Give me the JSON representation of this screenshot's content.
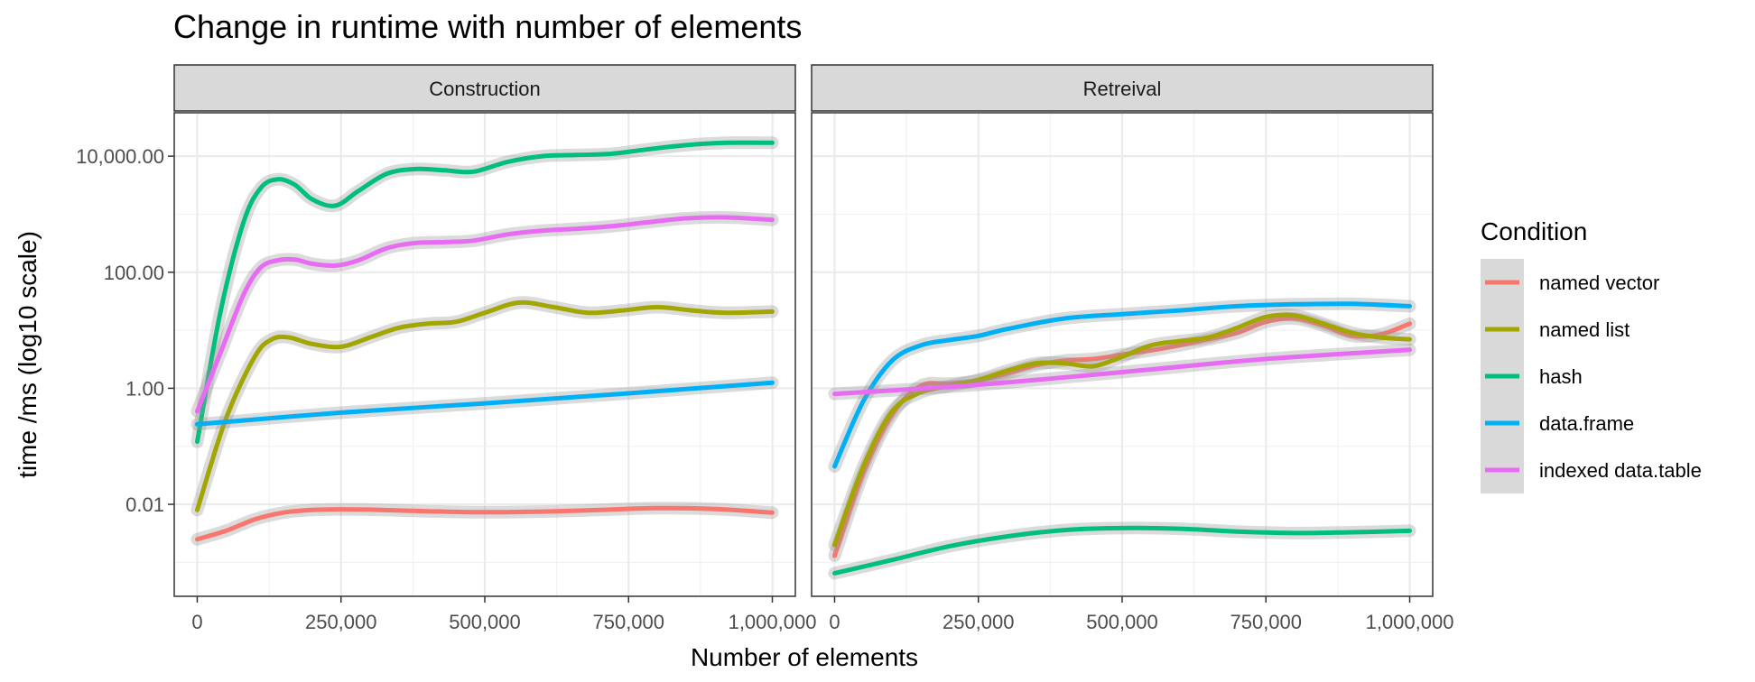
{
  "chart_data": {
    "type": "line",
    "title": "Change in runtime with number of elements",
    "xlabel": "Number of elements",
    "ylabel": "time /ms (log10 scale)",
    "y_scale": "log10",
    "xlim": [
      -40000,
      1040000
    ],
    "ylim": [
      0.00026,
      56000
    ],
    "x_ticks": [
      0,
      250000,
      500000,
      750000,
      1000000
    ],
    "x_tick_labels": [
      "0",
      "250,000",
      "500,000",
      "750,000",
      "1,000,000"
    ],
    "y_ticks": [
      0.01,
      1,
      100,
      10000
    ],
    "y_tick_labels": [
      "0.01",
      "1.00",
      "100.00",
      "10,000.00"
    ],
    "grid": true,
    "confidence_band": true,
    "legend": {
      "title": "Condition",
      "position": "right",
      "entries": [
        "named vector",
        "named list",
        "hash",
        "data.frame",
        "indexed data.table"
      ]
    },
    "colors": {
      "named vector": "#F8766D",
      "named list": "#A3A500",
      "hash": "#00BF7D",
      "data.frame": "#00B0F6",
      "indexed data.table": "#E76BF3"
    },
    "panels": [
      {
        "name": "Construction",
        "series": [
          {
            "name": "named vector",
            "x": [
              0,
              50000,
              100000,
              150000,
              200000,
              250000,
              300000,
              400000,
              500000,
              600000,
              700000,
              800000,
              900000,
              1000000
            ],
            "y": [
              0.0025,
              0.0035,
              0.0055,
              0.0072,
              0.008,
              0.0082,
              0.0081,
              0.0076,
              0.0073,
              0.0075,
              0.008,
              0.0086,
              0.0083,
              0.0072
            ]
          },
          {
            "name": "named list",
            "x": [
              0,
              50000,
              100000,
              130000,
              160000,
              200000,
              250000,
              300000,
              350000,
              400000,
              450000,
              500000,
              560000,
              620000,
              680000,
              740000,
              800000,
              860000,
              920000,
              1000000
            ],
            "y": [
              0.008,
              0.3,
              3.5,
              7,
              7.5,
              5.8,
              5.2,
              7.5,
              11,
              13,
              14,
              20,
              30,
              25,
              20,
              22,
              25,
              22,
              20,
              21
            ]
          },
          {
            "name": "hash",
            "x": [
              0,
              40000,
              80000,
              110000,
              140000,
              170000,
              200000,
              240000,
              280000,
              330000,
              380000,
              430000,
              480000,
              540000,
              600000,
              660000,
              720000,
              780000,
              850000,
              920000,
              1000000
            ],
            "y": [
              0.12,
              20,
              700,
              2800,
              4000,
              3200,
              1800,
              1400,
              2500,
              5000,
              6000,
              5700,
              5400,
              8000,
              10000,
              10500,
              11000,
              13000,
              15500,
              17000,
              17000
            ]
          },
          {
            "name": "data.frame",
            "x": [
              0,
              250000,
              500000,
              750000,
              1000000
            ],
            "y": [
              0.24,
              0.38,
              0.55,
              0.82,
              1.25
            ]
          },
          {
            "name": "indexed data.table",
            "x": [
              0,
              40000,
              80000,
              110000,
              140000,
              170000,
              200000,
              240000,
              280000,
              330000,
              380000,
              430000,
              480000,
              540000,
              600000,
              660000,
              720000,
              780000,
              850000,
              920000,
              1000000
            ],
            "y": [
              0.4,
              4,
              40,
              120,
              160,
              165,
              140,
              130,
              160,
              260,
              320,
              330,
              350,
              450,
              520,
              560,
              620,
              720,
              850,
              880,
              800
            ]
          }
        ]
      },
      {
        "name": "Retreival",
        "series": [
          {
            "name": "named vector",
            "x": [
              0,
              50000,
              100000,
              150000,
              200000,
              250000,
              300000,
              350000,
              400000,
              450000,
              500000,
              550000,
              600000,
              650000,
              700000,
              750000,
              800000,
              850000,
              900000,
              950000,
              1000000
            ],
            "y": [
              0.0013,
              0.035,
              0.35,
              1.1,
              1.2,
              1.35,
              1.8,
              2.5,
              3,
              3.2,
              3.8,
              4.5,
              5.5,
              7,
              9,
              14,
              16,
              12,
              8,
              8.5,
              13
            ]
          },
          {
            "name": "named list",
            "x": [
              0,
              50000,
              100000,
              150000,
              200000,
              250000,
              300000,
              350000,
              400000,
              450000,
              500000,
              550000,
              600000,
              650000,
              700000,
              750000,
              800000,
              850000,
              900000,
              950000,
              1000000
            ],
            "y": [
              0.002,
              0.045,
              0.4,
              0.85,
              1.1,
              1.4,
              2,
              2.7,
              2.7,
              2.4,
              3.5,
              5.5,
              6.5,
              7.5,
              11,
              17,
              18,
              13,
              9,
              7.5,
              7
            ]
          },
          {
            "name": "hash",
            "x": [
              0,
              100000,
              200000,
              300000,
              400000,
              500000,
              600000,
              700000,
              800000,
              900000,
              1000000
            ],
            "y": [
              0.00065,
              0.0011,
              0.0019,
              0.0028,
              0.0036,
              0.0039,
              0.0038,
              0.0034,
              0.0032,
              0.0033,
              0.0035
            ]
          },
          {
            "name": "data.frame",
            "x": [
              0,
              50000,
              100000,
              150000,
              200000,
              250000,
              300000,
              400000,
              500000,
              600000,
              700000,
              800000,
              900000,
              1000000
            ],
            "y": [
              0.045,
              0.6,
              3,
              5.5,
              6.8,
              8,
              10.5,
              16,
              19,
              22,
              26,
              28,
              28.5,
              26
            ]
          },
          {
            "name": "indexed data.table",
            "x": [
              0,
              250000,
              500000,
              750000,
              1000000
            ],
            "y": [
              0.8,
              1.15,
              1.9,
              3.2,
              4.6
            ]
          }
        ]
      }
    ]
  }
}
